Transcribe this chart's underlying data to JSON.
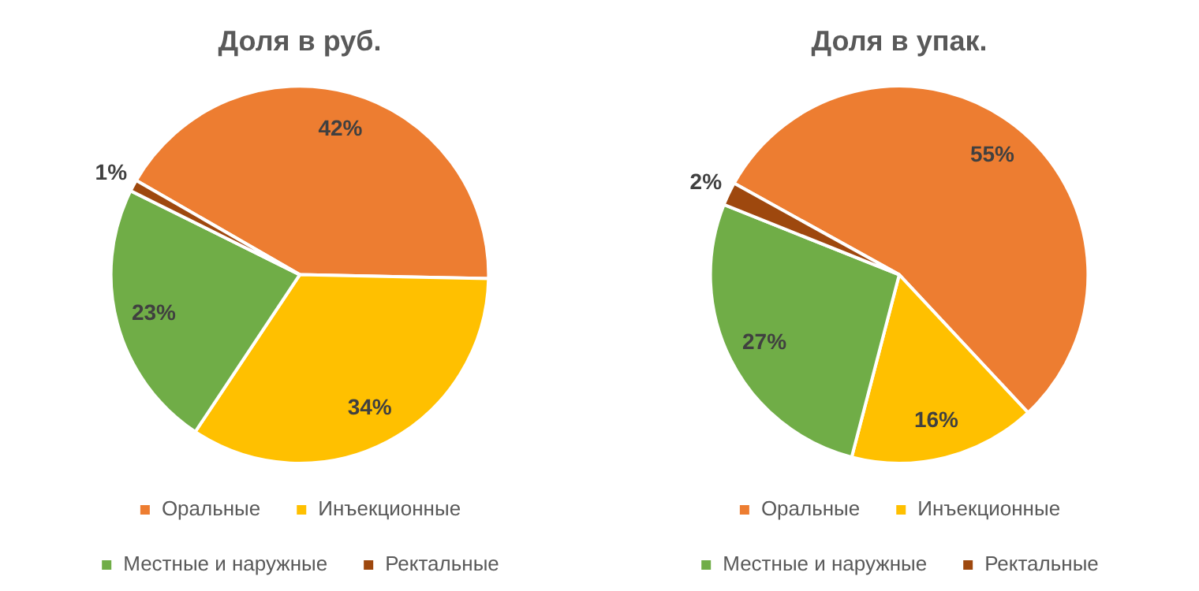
{
  "chart_data": [
    {
      "type": "pie",
      "title": "Доля в руб.",
      "categories": [
        "Оральные",
        "Инъекционные",
        "Местные и наружные",
        "Ректальные"
      ],
      "values": [
        42,
        34,
        23,
        1
      ],
      "value_labels": [
        "42%",
        "34%",
        "23%",
        "1%"
      ],
      "colors": [
        "#ed7d31",
        "#ffc000",
        "#70ad47",
        "#9e480e"
      ],
      "legend": "bottom"
    },
    {
      "type": "pie",
      "title": "Доля в упак.",
      "categories": [
        "Оральные",
        "Инъекционные",
        "Местные и наружные",
        "Ректальные"
      ],
      "values": [
        55,
        16,
        27,
        2
      ],
      "value_labels": [
        "55%",
        "16%",
        "27%",
        "2%"
      ],
      "colors": [
        "#ed7d31",
        "#ffc000",
        "#70ad47",
        "#9e480e"
      ],
      "legend": "bottom"
    }
  ]
}
